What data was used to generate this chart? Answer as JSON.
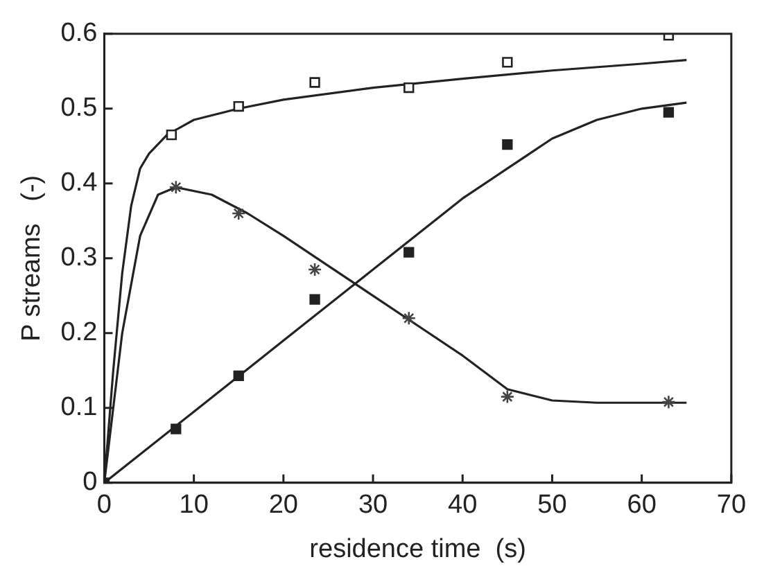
{
  "chart_data": {
    "type": "scatter",
    "xlabel": "residence time  (s)",
    "ylabel": "P streams   (-)",
    "xlim": [
      0,
      70
    ],
    "xticks": [
      0,
      10,
      20,
      30,
      40,
      50,
      60,
      70
    ],
    "ylim": [
      0,
      0.6
    ],
    "yticks": [
      0,
      0.1,
      0.2,
      0.3,
      0.4,
      0.5,
      0.6
    ],
    "grid": false,
    "legend": false,
    "series": [
      {
        "marker": "square",
        "color": "#ffffff",
        "x": [
          7.5,
          15,
          23.5,
          34,
          45,
          63
        ],
        "values": [
          0.465,
          0.503,
          0.535,
          0.528,
          0.562,
          0.598
        ]
      },
      {
        "marker": "square",
        "color": "#222222",
        "x": [
          0,
          8,
          15,
          23.5,
          34,
          45,
          63
        ],
        "values": [
          0,
          0.072,
          0.143,
          0.245,
          0.308,
          0.452,
          0.495
        ]
      },
      {
        "marker": "cross",
        "color": "#444444",
        "x": [
          8,
          15,
          23.5,
          34,
          45,
          63
        ],
        "values": [
          0.395,
          0.36,
          0.285,
          0.22,
          0.115,
          0.108
        ]
      },
      {
        "type": "line",
        "marker": "none",
        "color": "#222222",
        "x": [
          0,
          1,
          2,
          3,
          4,
          5,
          7,
          10,
          15,
          20,
          30,
          40,
          50,
          60,
          65
        ],
        "values": [
          0,
          0.15,
          0.28,
          0.37,
          0.42,
          0.44,
          0.465,
          0.485,
          0.5,
          0.512,
          0.528,
          0.54,
          0.551,
          0.56,
          0.565
        ]
      },
      {
        "type": "line",
        "marker": "none",
        "color": "#222222",
        "x": [
          0,
          10,
          20,
          30,
          40,
          45,
          50,
          55,
          60,
          65
        ],
        "values": [
          0,
          0.095,
          0.19,
          0.285,
          0.38,
          0.42,
          0.46,
          0.485,
          0.5,
          0.508
        ]
      },
      {
        "type": "line",
        "marker": "none",
        "color": "#222222",
        "x": [
          0,
          2,
          4,
          6,
          8,
          12,
          16,
          20,
          25,
          30,
          35,
          40,
          45,
          50,
          55,
          65
        ],
        "values": [
          0,
          0.2,
          0.33,
          0.385,
          0.395,
          0.385,
          0.36,
          0.33,
          0.29,
          0.25,
          0.21,
          0.17,
          0.125,
          0.11,
          0.107,
          0.107
        ]
      }
    ]
  }
}
